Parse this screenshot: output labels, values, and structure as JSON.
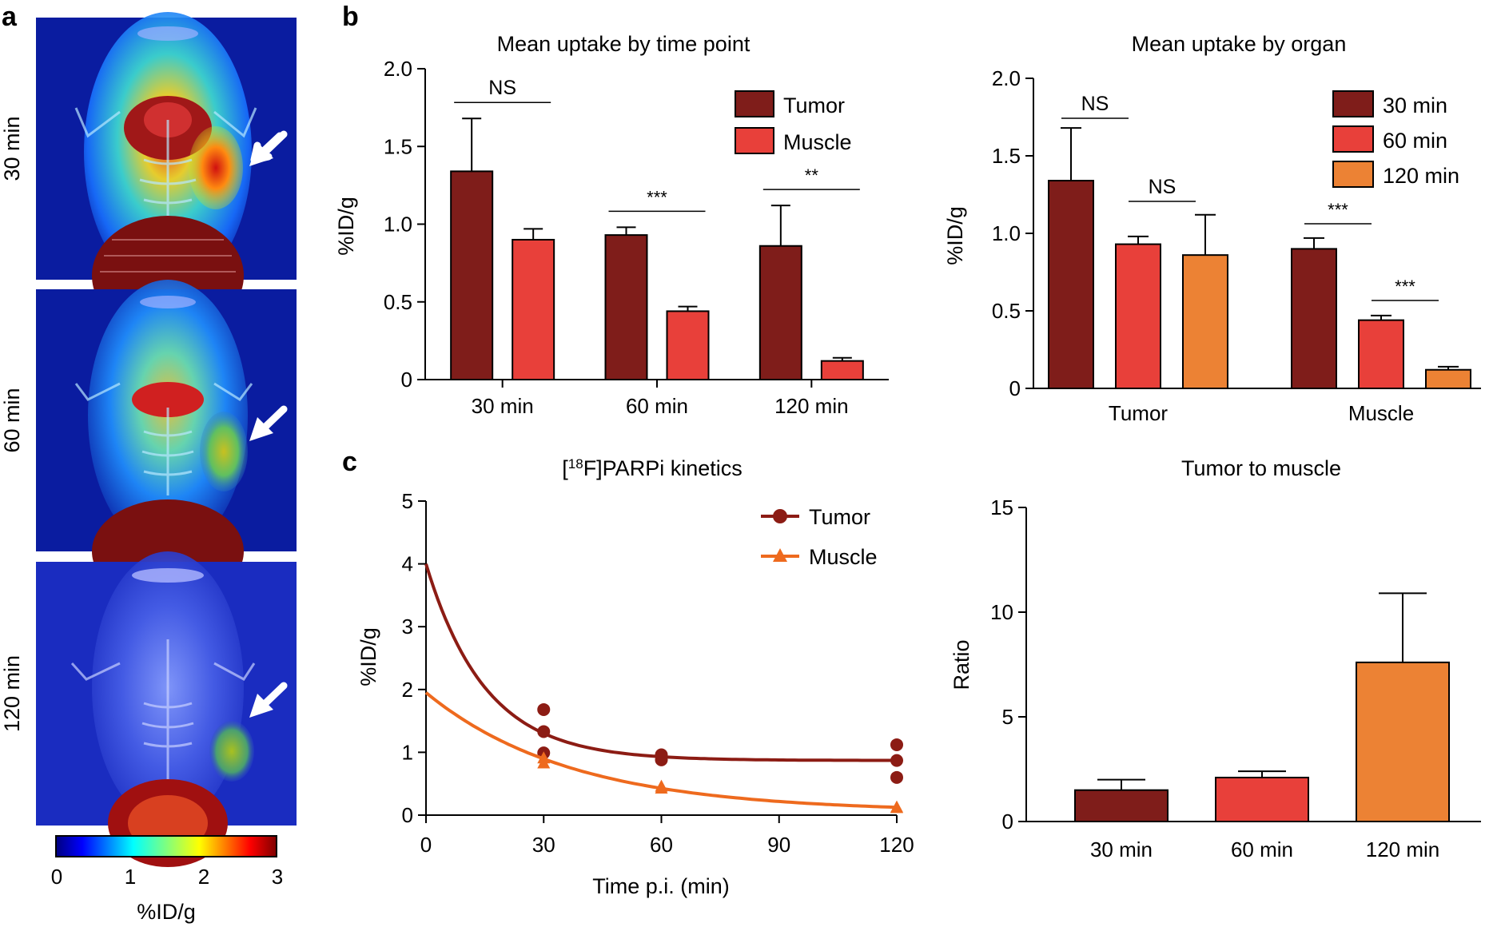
{
  "panels": {
    "a": "a",
    "b": "b",
    "c": "c"
  },
  "panel_a": {
    "time_labels": [
      "30 min",
      "60 min",
      "120 min"
    ],
    "colorbar": {
      "ticks": [
        "0",
        "1",
        "2",
        "3"
      ],
      "label": "%ID/g",
      "range": [
        0,
        3
      ]
    }
  },
  "colors": {
    "tumor": "#7f1d1a",
    "muscle": "#e8403a",
    "min120": "#ec8234",
    "line_tumor": "#8c1c14",
    "line_muscle": "#ee6a1e"
  },
  "chart_data": [
    {
      "id": "b1",
      "type": "bar",
      "title": "Mean uptake by time point",
      "ylabel": "%ID/g",
      "xlabel": "",
      "categories": [
        "30 min",
        "60 min",
        "120 min"
      ],
      "ylim": [
        0,
        2.0
      ],
      "yticks": [
        "0",
        "0.5",
        "1.0",
        "1.5",
        "2.0"
      ],
      "legend_position": "top-right",
      "series": [
        {
          "name": "Tumor",
          "values": [
            1.34,
            0.93,
            0.86
          ],
          "errors": [
            0.34,
            0.05,
            0.26
          ]
        },
        {
          "name": "Muscle",
          "values": [
            0.9,
            0.44,
            0.12
          ],
          "errors": [
            0.07,
            0.03,
            0.02
          ]
        }
      ],
      "significance": [
        "NS",
        "***",
        "**"
      ]
    },
    {
      "id": "b2",
      "type": "bar",
      "title": "Mean uptake by organ",
      "ylabel": "%ID/g",
      "xlabel": "",
      "categories": [
        "Tumor",
        "Muscle"
      ],
      "ylim": [
        0,
        2.0
      ],
      "yticks": [
        "0",
        "0.5",
        "1.0",
        "1.5",
        "2.0"
      ],
      "legend_position": "top-right",
      "series": [
        {
          "name": "30 min",
          "values": [
            1.34,
            0.9
          ],
          "errors": [
            0.34,
            0.07
          ]
        },
        {
          "name": "60 min",
          "values": [
            0.93,
            0.44
          ],
          "errors": [
            0.05,
            0.03
          ]
        },
        {
          "name": "120 min",
          "values": [
            0.86,
            0.12
          ],
          "errors": [
            0.26,
            0.02
          ]
        }
      ],
      "significance": [
        "NS",
        "NS",
        "***",
        "***"
      ]
    },
    {
      "id": "c1",
      "type": "line",
      "title_parts": [
        "[",
        "18",
        "F]PARPi kinetics"
      ],
      "xlabel": "Time p.i. (min)",
      "ylabel": "%ID/g",
      "xlim": [
        0,
        120
      ],
      "ylim": [
        0,
        5
      ],
      "xticks": [
        "0",
        "30",
        "60",
        "90",
        "120"
      ],
      "yticks": [
        "0",
        "1",
        "2",
        "3",
        "4",
        "5"
      ],
      "legend_position": "top-right",
      "series": [
        {
          "name": "Tumor",
          "marker": "circle",
          "points": [
            [
              30,
              1.68
            ],
            [
              30,
              1.33
            ],
            [
              30,
              0.99
            ],
            [
              60,
              0.96
            ],
            [
              60,
              0.88
            ],
            [
              120,
              1.12
            ],
            [
              120,
              0.87
            ],
            [
              120,
              0.6
            ]
          ],
          "fit": {
            "plateau": 0.87,
            "y0": 4.0,
            "k": 0.066
          }
        },
        {
          "name": "Muscle",
          "marker": "triangle",
          "points": [
            [
              30,
              0.9
            ],
            [
              30,
              0.82
            ],
            [
              60,
              0.45
            ],
            [
              60,
              0.42
            ],
            [
              120,
              0.12
            ],
            [
              120,
              0.11
            ]
          ],
          "fit": {
            "plateau": 0.05,
            "y0": 1.95,
            "k": 0.027
          }
        }
      ]
    },
    {
      "id": "c2",
      "type": "bar",
      "title": "Tumor to muscle",
      "ylabel": "Ratio",
      "xlabel": "",
      "categories": [
        "30 min",
        "60 min",
        "120 min"
      ],
      "ylim": [
        0,
        15
      ],
      "yticks": [
        "0",
        "5",
        "10",
        "15"
      ],
      "series": [
        {
          "values": [
            1.5,
            2.1,
            7.6
          ],
          "errors": [
            0.5,
            0.3,
            3.3
          ]
        }
      ]
    }
  ]
}
